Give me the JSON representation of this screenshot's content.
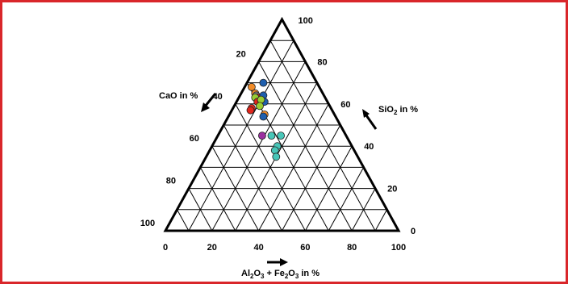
{
  "chart_data": {
    "type": "scatter",
    "subtype": "ternary",
    "axes": {
      "silica": {
        "label_main": "SiO",
        "label_sub": "2",
        "label_tail": " in %",
        "ticks": [
          "0",
          "20",
          "40",
          "60",
          "80",
          "100"
        ]
      },
      "lime": {
        "label_main": "CaO in %",
        "ticks": [
          "20",
          "40",
          "60",
          "80",
          "100"
        ]
      },
      "alumina_iron": {
        "label_parts": [
          "Al",
          "2",
          "O",
          "3",
          " + Fe",
          "2",
          "O",
          "3",
          " in %"
        ],
        "ticks": [
          "0",
          "20",
          "40",
          "60",
          "80",
          "100"
        ]
      }
    },
    "grid_step": 10,
    "range": [
      0,
      100
    ],
    "grid": true,
    "points": [
      {
        "SiO2": 68,
        "CaO": 29,
        "Al2O3_Fe2O3": 3,
        "color": "#f28c28"
      },
      {
        "SiO2": 65,
        "CaO": 29,
        "Al2O3_Fe2O3": 6,
        "color": "#f28c28"
      },
      {
        "SiO2": 64,
        "CaO": 29,
        "Al2O3_Fe2O3": 7,
        "color": "#7f7f7f"
      },
      {
        "SiO2": 63,
        "CaO": 29,
        "Al2O3_Fe2O3": 8,
        "color": "#e1261c"
      },
      {
        "SiO2": 63,
        "CaO": 30,
        "Al2O3_Fe2O3": 7,
        "color": "#9acd32"
      },
      {
        "SiO2": 61,
        "CaO": 30,
        "Al2O3_Fe2O3": 9,
        "color": "#e1261c"
      },
      {
        "SiO2": 58,
        "CaO": 34,
        "Al2O3_Fe2O3": 8,
        "color": "#e1261c"
      },
      {
        "SiO2": 57,
        "CaO": 35,
        "Al2O3_Fe2O3": 8,
        "color": "#e1261c"
      },
      {
        "SiO2": 70,
        "CaO": 23,
        "Al2O3_Fe2O3": 7,
        "color": "#1f5fae"
      },
      {
        "SiO2": 64,
        "CaO": 26,
        "Al2O3_Fe2O3": 10,
        "color": "#1f5fae"
      },
      {
        "SiO2": 61,
        "CaO": 27,
        "Al2O3_Fe2O3": 12,
        "color": "#1f5fae"
      },
      {
        "SiO2": 62,
        "CaO": 28,
        "Al2O3_Fe2O3": 10,
        "color": "#9acd32"
      },
      {
        "SiO2": 59,
        "CaO": 30,
        "Al2O3_Fe2O3": 11,
        "color": "#9acd32"
      },
      {
        "SiO2": 55,
        "CaO": 30,
        "Al2O3_Fe2O3": 15,
        "color": "#f28c28"
      },
      {
        "SiO2": 54,
        "CaO": 31,
        "Al2O3_Fe2O3": 15,
        "color": "#1f5fae"
      },
      {
        "SiO2": 45,
        "CaO": 32,
        "Al2O3_Fe2O3": 23,
        "color": "#48c6b8"
      },
      {
        "SiO2": 45,
        "CaO": 36,
        "Al2O3_Fe2O3": 19,
        "color": "#9b30a0"
      },
      {
        "SiO2": 45,
        "CaO": 28,
        "Al2O3_Fe2O3": 27,
        "color": "#48c6b8"
      },
      {
        "SiO2": 40,
        "CaO": 32,
        "Al2O3_Fe2O3": 28,
        "color": "#48c6b8"
      },
      {
        "SiO2": 38,
        "CaO": 34,
        "Al2O3_Fe2O3": 28,
        "color": "#48c6b8"
      },
      {
        "SiO2": 35,
        "CaO": 35,
        "Al2O3_Fe2O3": 30,
        "color": "#48c6b8"
      }
    ]
  }
}
